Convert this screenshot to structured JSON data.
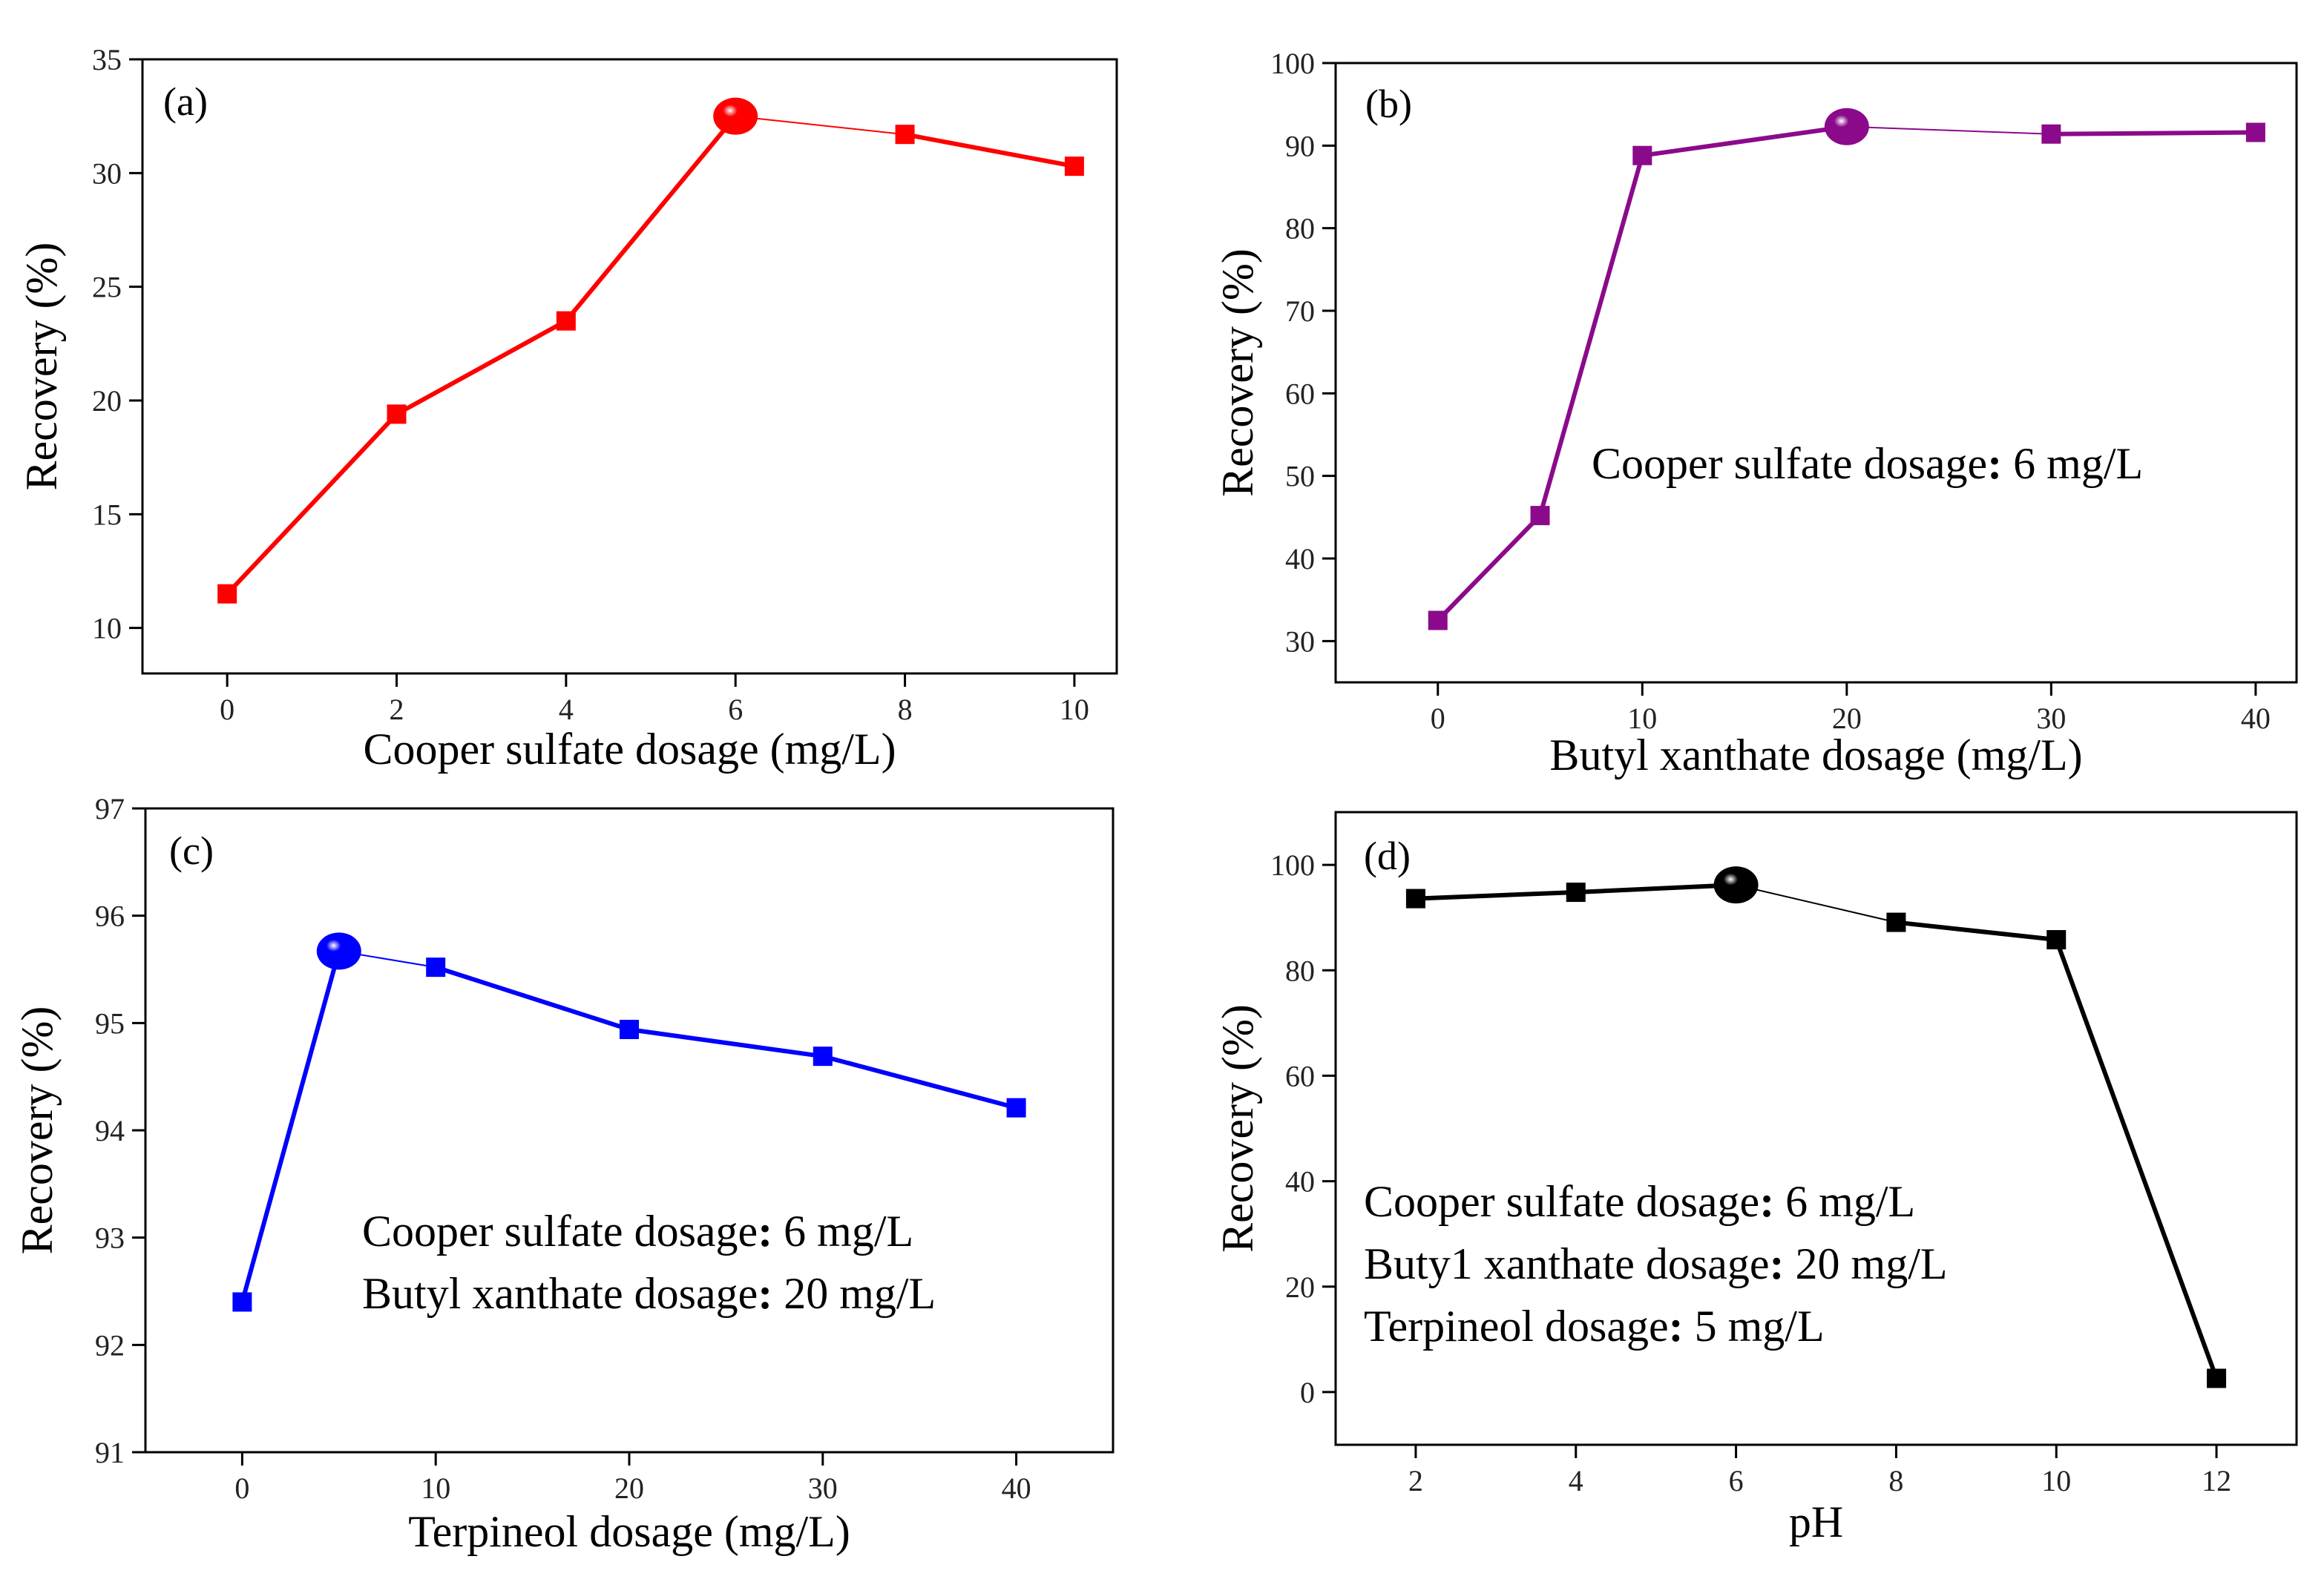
{
  "chart_data": [
    {
      "type": "line",
      "panel": "(a)",
      "xlabel": "Cooper sulfate dosage  (mg/L)",
      "ylabel": "Recovery (%)",
      "xlim": [
        -1,
        10.5
      ],
      "ylim": [
        8,
        35
      ],
      "xticks": [
        0,
        2,
        4,
        6,
        8,
        10
      ],
      "yticks": [
        10,
        15,
        20,
        25,
        30,
        35
      ],
      "color": "#ff0000",
      "series": [
        {
          "name": "Recovery",
          "x": [
            0,
            2,
            4,
            6,
            8,
            10
          ],
          "y": [
            11.5,
            19.4,
            23.5,
            32.5,
            31.7,
            30.3
          ]
        }
      ],
      "highlight_index": 3,
      "annotations": []
    },
    {
      "type": "line",
      "panel": "(b)",
      "xlabel": "Butyl xanthate dosage   (mg/L)",
      "ylabel": "Recovery  (%)",
      "xlim": [
        -5,
        42
      ],
      "ylim": [
        25,
        100
      ],
      "xticks": [
        0,
        10,
        20,
        30,
        40
      ],
      "yticks": [
        30,
        40,
        50,
        60,
        70,
        80,
        90,
        100
      ],
      "color": "#8b0a8b",
      "series": [
        {
          "name": "Recovery",
          "x": [
            0,
            5,
            10,
            20,
            30,
            40
          ],
          "y": [
            32.5,
            45.2,
            88.8,
            92.3,
            91.4,
            91.6
          ]
        }
      ],
      "highlight_index": 3,
      "annotations": [
        {
          "label": "Cooper sulfate dosage",
          "value": " 6 mg/L"
        }
      ]
    },
    {
      "type": "line",
      "panel": "(c)",
      "xlabel": "Terpineol  dosage (mg/L)",
      "ylabel": "Recovery (%)",
      "xlim": [
        -5,
        45
      ],
      "ylim": [
        91,
        97
      ],
      "xticks": [
        0,
        10,
        20,
        30,
        40
      ],
      "yticks": [
        91,
        92,
        93,
        94,
        95,
        96,
        97
      ],
      "color": "#0000ff",
      "series": [
        {
          "name": "Recovery",
          "x": [
            0,
            5,
            10,
            20,
            30,
            40
          ],
          "y": [
            92.4,
            95.67,
            95.52,
            94.94,
            94.69,
            94.21
          ]
        }
      ],
      "highlight_index": 1,
      "annotations": [
        {
          "label": "Cooper sulfate dosage",
          "value": " 6 mg/L"
        },
        {
          "label": "Butyl xanthate dosage",
          "value": " 20 mg/L"
        }
      ]
    },
    {
      "type": "line",
      "panel": "(d)",
      "xlabel": "pH",
      "ylabel": "Recovery  (%)",
      "xlim": [
        1,
        13
      ],
      "ylim": [
        -10,
        110
      ],
      "xticks": [
        2,
        4,
        6,
        8,
        10,
        12
      ],
      "yticks": [
        0,
        20,
        40,
        60,
        80,
        100
      ],
      "color": "#000000",
      "series": [
        {
          "name": "Recovery",
          "x": [
            2,
            4,
            6,
            8,
            10,
            12
          ],
          "y": [
            93.6,
            94.8,
            96.2,
            89.1,
            85.8,
            2.6
          ]
        }
      ],
      "highlight_index": 2,
      "annotations": [
        {
          "label": "Cooper sulfate dosage",
          "value": " 6 mg/L"
        },
        {
          "label": "Buty1 xanthate dosage",
          "value": " 20 mg/L"
        },
        {
          "label": "Terpineol  dosage",
          "value": " 5 mg/L"
        }
      ]
    }
  ]
}
